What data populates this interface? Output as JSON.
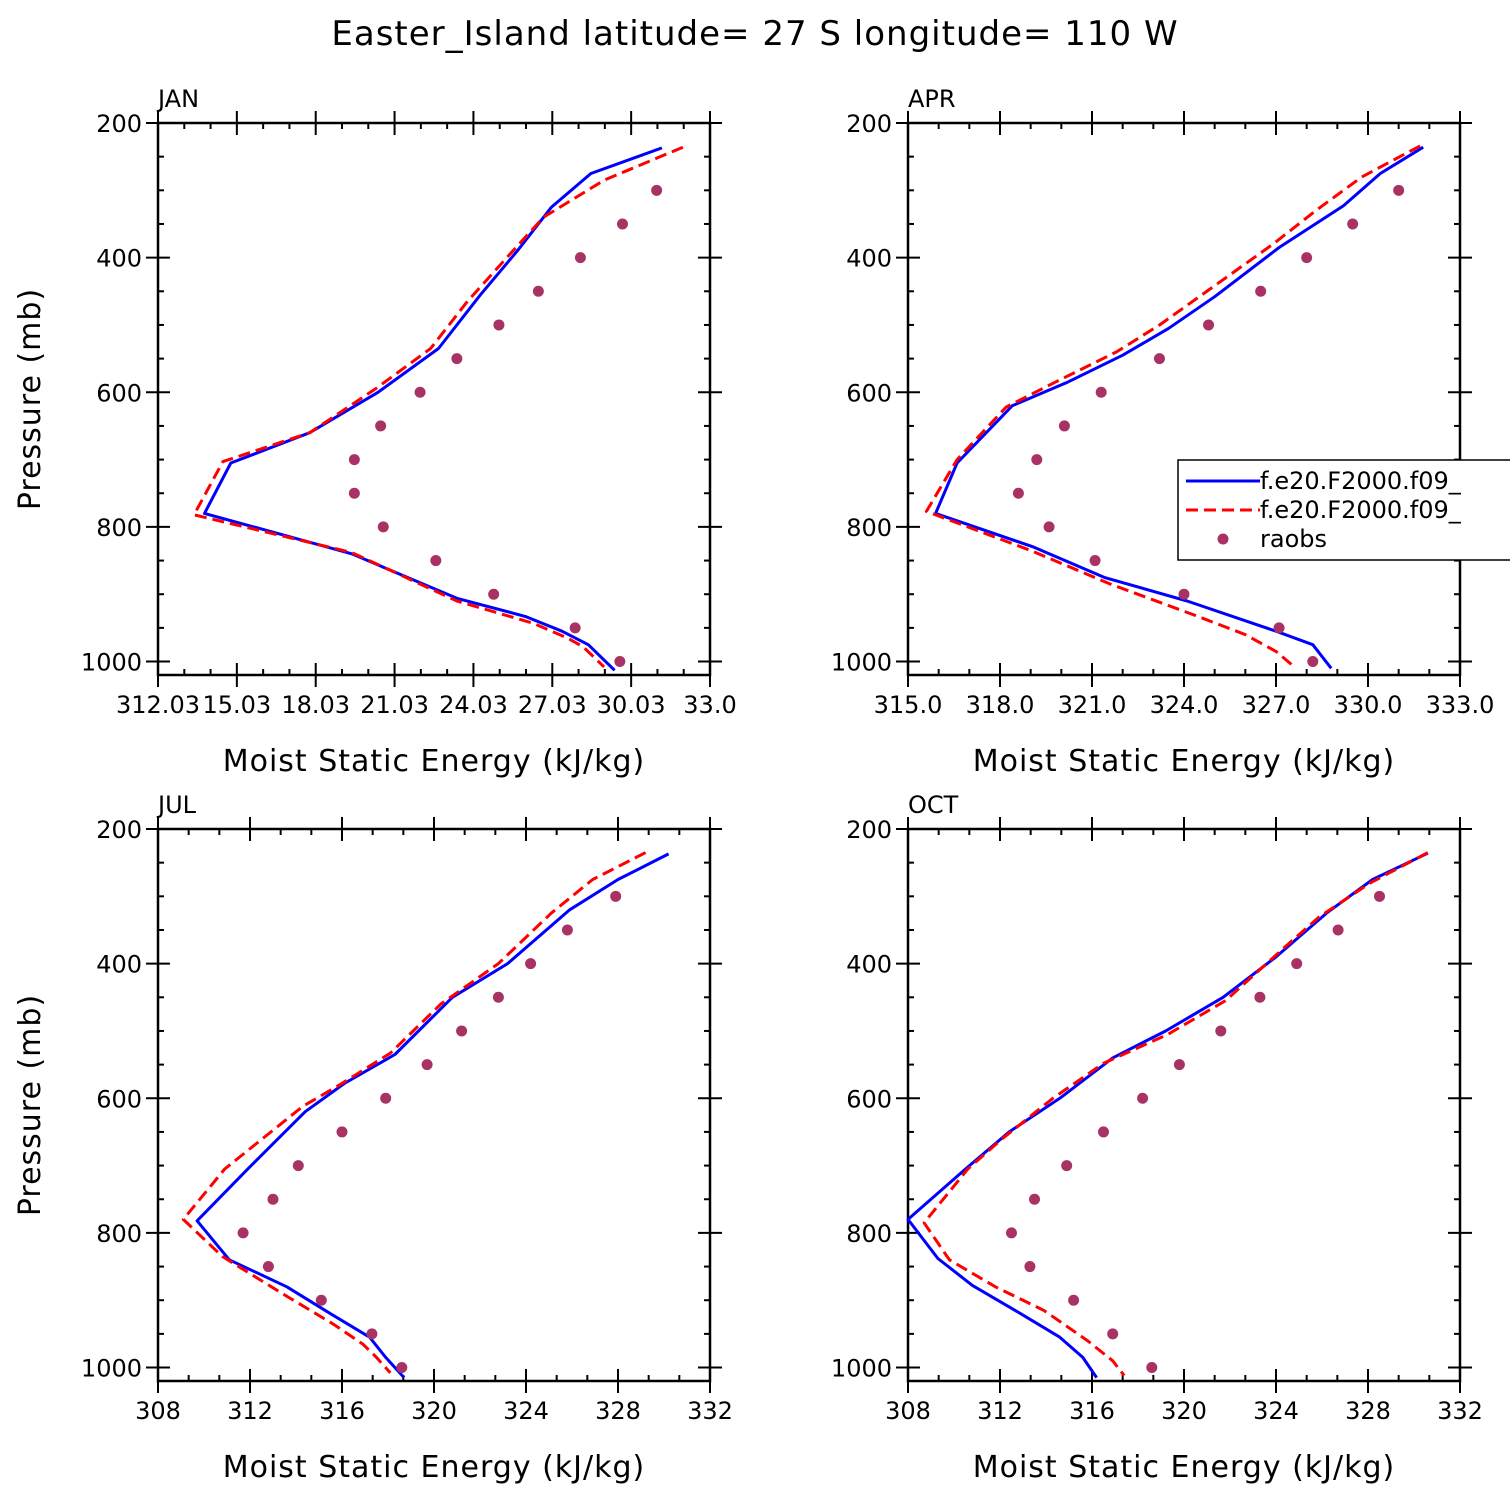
{
  "title": "Easter_Island  latitude= 27 S longitude= 110 W",
  "colors": {
    "model1": "#0000ff",
    "model2": "#ff0000",
    "obs": "#a83264"
  },
  "legend": {
    "placement": "right-middle of APR panel",
    "entries": [
      "f.e20.F2000.f09_",
      "f.e20.F2000.f09_",
      "raobs"
    ]
  },
  "chart_data": [
    {
      "type": "line",
      "panel": "JAN",
      "title": "JAN",
      "xlabel": "Moist Static Energy (kJ/kg)",
      "ylabel": "Pressure (mb)",
      "xlim": [
        312.03,
        333.03
      ],
      "ylim": [
        1020,
        200
      ],
      "x_tick_labels": [
        "312.03",
        "15.03",
        "18.03",
        "21.03",
        "24.03",
        "27.03",
        "30.03",
        "33.0"
      ],
      "x_tick_values": [
        312.03,
        315.03,
        318.03,
        321.03,
        324.03,
        327.03,
        330.03,
        333.03
      ],
      "y_tick_labels": [
        "200",
        "400",
        "600",
        "800",
        "1000"
      ],
      "y_tick_values": [
        200,
        400,
        600,
        800,
        1000
      ],
      "series": [
        {
          "style": "solid",
          "color": "#0000ff",
          "points": [
            [
              331.2,
              237
            ],
            [
              328.5,
              275
            ],
            [
              327.0,
              325
            ],
            [
              325.7,
              390
            ],
            [
              324.3,
              455
            ],
            [
              322.7,
              535
            ],
            [
              320.4,
              600
            ],
            [
              317.8,
              660
            ],
            [
              314.8,
              705
            ],
            [
              313.8,
              780
            ],
            [
              319.4,
              840
            ],
            [
              323.4,
              906
            ],
            [
              326.0,
              933
            ],
            [
              327.4,
              955
            ],
            [
              328.4,
              975
            ],
            [
              329.4,
              1013
            ]
          ]
        },
        {
          "style": "dashed",
          "color": "#ff0000",
          "points": [
            [
              332.0,
              236
            ],
            [
              329.0,
              285
            ],
            [
              326.7,
              340
            ],
            [
              325.3,
              400
            ],
            [
              323.8,
              465
            ],
            [
              322.4,
              535
            ],
            [
              320.3,
              595
            ],
            [
              317.8,
              660
            ],
            [
              314.5,
              703
            ],
            [
              313.4,
              782
            ],
            [
              319.4,
              838
            ],
            [
              323.4,
              910
            ],
            [
              326.3,
              943
            ],
            [
              327.6,
              965
            ],
            [
              328.2,
              978
            ],
            [
              329.0,
              1008
            ]
          ]
        },
        {
          "style": "markers",
          "color": "#a83264",
          "points": [
            [
              331.0,
              300
            ],
            [
              329.7,
              350
            ],
            [
              328.1,
              400
            ],
            [
              326.5,
              450
            ],
            [
              325.0,
              500
            ],
            [
              323.4,
              550
            ],
            [
              322.0,
              600
            ],
            [
              320.5,
              650
            ],
            [
              319.5,
              700
            ],
            [
              319.5,
              750
            ],
            [
              320.6,
              800
            ],
            [
              322.6,
              850
            ],
            [
              324.8,
              900
            ],
            [
              327.9,
              950
            ],
            [
              329.6,
              1000
            ]
          ]
        }
      ]
    },
    {
      "type": "line",
      "panel": "APR",
      "title": "APR",
      "xlabel": "Moist Static Energy (kJ/kg)",
      "ylabel": "",
      "xlim": [
        315.0,
        333.0
      ],
      "ylim": [
        1020,
        200
      ],
      "x_tick_labels": [
        "315.0",
        "318.0",
        "321.0",
        "324.0",
        "327.0",
        "330.0",
        "333.0"
      ],
      "x_tick_values": [
        315,
        318,
        321,
        324,
        327,
        330,
        333
      ],
      "y_tick_labels": [
        "200",
        "400",
        "600",
        "800",
        "1000"
      ],
      "y_tick_values": [
        200,
        400,
        600,
        800,
        1000
      ],
      "series": [
        {
          "style": "solid",
          "color": "#0000ff",
          "points": [
            [
              331.8,
              236
            ],
            [
              330.4,
              275
            ],
            [
              329.2,
              323
            ],
            [
              327.1,
              385
            ],
            [
              325.0,
              458
            ],
            [
              323.5,
              505
            ],
            [
              322.0,
              545
            ],
            [
              320.2,
              585
            ],
            [
              318.4,
              620
            ],
            [
              316.6,
              705
            ],
            [
              315.9,
              780
            ],
            [
              319.1,
              830
            ],
            [
              321.4,
              875
            ],
            [
              324.1,
              910
            ],
            [
              327.0,
              955
            ],
            [
              328.2,
              975
            ],
            [
              328.8,
              1010
            ]
          ]
        },
        {
          "style": "dashed",
          "color": "#ff0000",
          "points": [
            [
              331.7,
              234
            ],
            [
              329.8,
              280
            ],
            [
              328.3,
              330
            ],
            [
              326.9,
              380
            ],
            [
              324.9,
              445
            ],
            [
              323.2,
              500
            ],
            [
              321.8,
              540
            ],
            [
              319.8,
              585
            ],
            [
              318.2,
              622
            ],
            [
              316.6,
              700
            ],
            [
              315.6,
              777
            ],
            [
              319.0,
              835
            ],
            [
              321.6,
              885
            ],
            [
              324.4,
              932
            ],
            [
              326.0,
              960
            ],
            [
              327.0,
              985
            ],
            [
              327.6,
              1008
            ]
          ]
        },
        {
          "style": "markers",
          "color": "#a83264",
          "points": [
            [
              331.0,
              300
            ],
            [
              329.5,
              350
            ],
            [
              328.0,
              400
            ],
            [
              326.5,
              450
            ],
            [
              324.8,
              500
            ],
            [
              323.2,
              550
            ],
            [
              321.3,
              600
            ],
            [
              320.1,
              650
            ],
            [
              319.2,
              700
            ],
            [
              318.6,
              750
            ],
            [
              319.6,
              800
            ],
            [
              321.1,
              850
            ],
            [
              324.0,
              900
            ],
            [
              327.1,
              950
            ],
            [
              328.2,
              1000
            ]
          ]
        }
      ]
    },
    {
      "type": "line",
      "panel": "JUL",
      "title": "JUL",
      "xlabel": "Moist Static Energy (kJ/kg)",
      "ylabel": "Pressure (mb)",
      "xlim": [
        308,
        332
      ],
      "ylim": [
        1020,
        200
      ],
      "x_tick_labels": [
        "308",
        "312",
        "316",
        "320",
        "324",
        "328",
        "332"
      ],
      "x_tick_values": [
        308,
        312,
        316,
        320,
        324,
        328,
        332
      ],
      "y_tick_labels": [
        "200",
        "400",
        "600",
        "800",
        "1000"
      ],
      "y_tick_values": [
        200,
        400,
        600,
        800,
        1000
      ],
      "series": [
        {
          "style": "solid",
          "color": "#0000ff",
          "points": [
            [
              330.2,
              237
            ],
            [
              328.0,
              275
            ],
            [
              325.9,
              320
            ],
            [
              323.2,
              400
            ],
            [
              320.8,
              450
            ],
            [
              318.3,
              535
            ],
            [
              316.1,
              578
            ],
            [
              314.4,
              620
            ],
            [
              311.9,
              705
            ],
            [
              309.7,
              782
            ],
            [
              311.1,
              840
            ],
            [
              313.6,
              880
            ],
            [
              315.5,
              920
            ],
            [
              317.2,
              955
            ],
            [
              317.9,
              985
            ],
            [
              318.7,
              1015
            ]
          ]
        },
        {
          "style": "dashed",
          "color": "#ff0000",
          "points": [
            [
              329.2,
              235
            ],
            [
              326.9,
              275
            ],
            [
              325.1,
              325
            ],
            [
              322.8,
              400
            ],
            [
              320.3,
              460
            ],
            [
              318.1,
              533
            ],
            [
              315.9,
              580
            ],
            [
              314.3,
              612
            ],
            [
              310.9,
              705
            ],
            [
              309.1,
              780
            ],
            [
              310.8,
              835
            ],
            [
              313.4,
              890
            ],
            [
              315.6,
              935
            ],
            [
              316.9,
              965
            ],
            [
              317.5,
              985
            ],
            [
              318.1,
              1008
            ]
          ]
        },
        {
          "style": "markers",
          "color": "#a83264",
          "points": [
            [
              327.9,
              300
            ],
            [
              325.8,
              350
            ],
            [
              324.2,
              400
            ],
            [
              322.8,
              450
            ],
            [
              321.2,
              500
            ],
            [
              319.7,
              550
            ],
            [
              317.9,
              600
            ],
            [
              316.0,
              650
            ],
            [
              314.1,
              700
            ],
            [
              313.0,
              750
            ],
            [
              311.7,
              800
            ],
            [
              312.8,
              850
            ],
            [
              315.1,
              900
            ],
            [
              317.3,
              950
            ],
            [
              318.6,
              1000
            ]
          ]
        }
      ]
    },
    {
      "type": "line",
      "panel": "OCT",
      "title": "OCT",
      "xlabel": "Moist Static Energy (kJ/kg)",
      "ylabel": "",
      "xlim": [
        308,
        332
      ],
      "ylim": [
        1020,
        200
      ],
      "x_tick_labels": [
        "308",
        "312",
        "316",
        "320",
        "324",
        "328",
        "332"
      ],
      "x_tick_values": [
        308,
        312,
        316,
        320,
        324,
        328,
        332
      ],
      "y_tick_labels": [
        "200",
        "400",
        "600",
        "800",
        "1000"
      ],
      "y_tick_values": [
        200,
        400,
        600,
        800,
        1000
      ],
      "series": [
        {
          "style": "solid",
          "color": "#0000ff",
          "points": [
            [
              330.6,
              236
            ],
            [
              328.2,
              275
            ],
            [
              326.2,
              325
            ],
            [
              324.0,
              390
            ],
            [
              321.7,
              450
            ],
            [
              319.2,
              500
            ],
            [
              316.9,
              540
            ],
            [
              314.6,
              600
            ],
            [
              312.4,
              650
            ],
            [
              310.5,
              705
            ],
            [
              308.0,
              780
            ],
            [
              309.3,
              838
            ],
            [
              310.8,
              878
            ],
            [
              312.9,
              920
            ],
            [
              314.6,
              955
            ],
            [
              315.6,
              985
            ],
            [
              316.2,
              1015
            ]
          ]
        },
        {
          "style": "dashed",
          "color": "#ff0000",
          "points": [
            [
              330.6,
              235
            ],
            [
              328.1,
              280
            ],
            [
              325.9,
              330
            ],
            [
              324.4,
              375
            ],
            [
              321.8,
              455
            ],
            [
              319.3,
              505
            ],
            [
              316.5,
              548
            ],
            [
              314.3,
              600
            ],
            [
              312.1,
              660
            ],
            [
              310.6,
              705
            ],
            [
              308.7,
              785
            ],
            [
              309.8,
              840
            ],
            [
              311.8,
              880
            ],
            [
              313.9,
              915
            ],
            [
              315.8,
              960
            ],
            [
              316.9,
              990
            ],
            [
              317.4,
              1012
            ]
          ]
        },
        {
          "style": "markers",
          "color": "#a83264",
          "points": [
            [
              328.5,
              300
            ],
            [
              326.7,
              350
            ],
            [
              324.9,
              400
            ],
            [
              323.3,
              450
            ],
            [
              321.6,
              500
            ],
            [
              319.8,
              550
            ],
            [
              318.2,
              600
            ],
            [
              316.5,
              650
            ],
            [
              314.9,
              700
            ],
            [
              313.5,
              750
            ],
            [
              312.5,
              800
            ],
            [
              313.3,
              850
            ],
            [
              315.2,
              900
            ],
            [
              316.9,
              950
            ],
            [
              318.6,
              1000
            ]
          ]
        }
      ]
    }
  ]
}
